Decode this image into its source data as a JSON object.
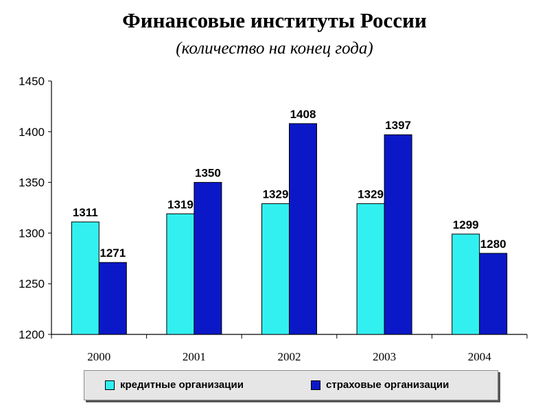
{
  "title": "Финансовые институты России",
  "subtitle": "(количество на конец года)",
  "chart_data": {
    "type": "bar",
    "categories": [
      "2000",
      "2001",
      "2002",
      "2003",
      "2004"
    ],
    "series": [
      {
        "name": "кредитные организации",
        "values": [
          1311,
          1319,
          1329,
          1329,
          1299
        ],
        "color": "#33f0f0"
      },
      {
        "name": "страховые организации",
        "values": [
          1271,
          1350,
          1408,
          1397,
          1280
        ],
        "color": "#0b18c7"
      }
    ],
    "ylim": [
      1200,
      1450
    ],
    "yticks": [
      "1200",
      "1250",
      "1300",
      "1350",
      "1400",
      "1450"
    ],
    "grid": false,
    "legend_position": "bottom"
  }
}
